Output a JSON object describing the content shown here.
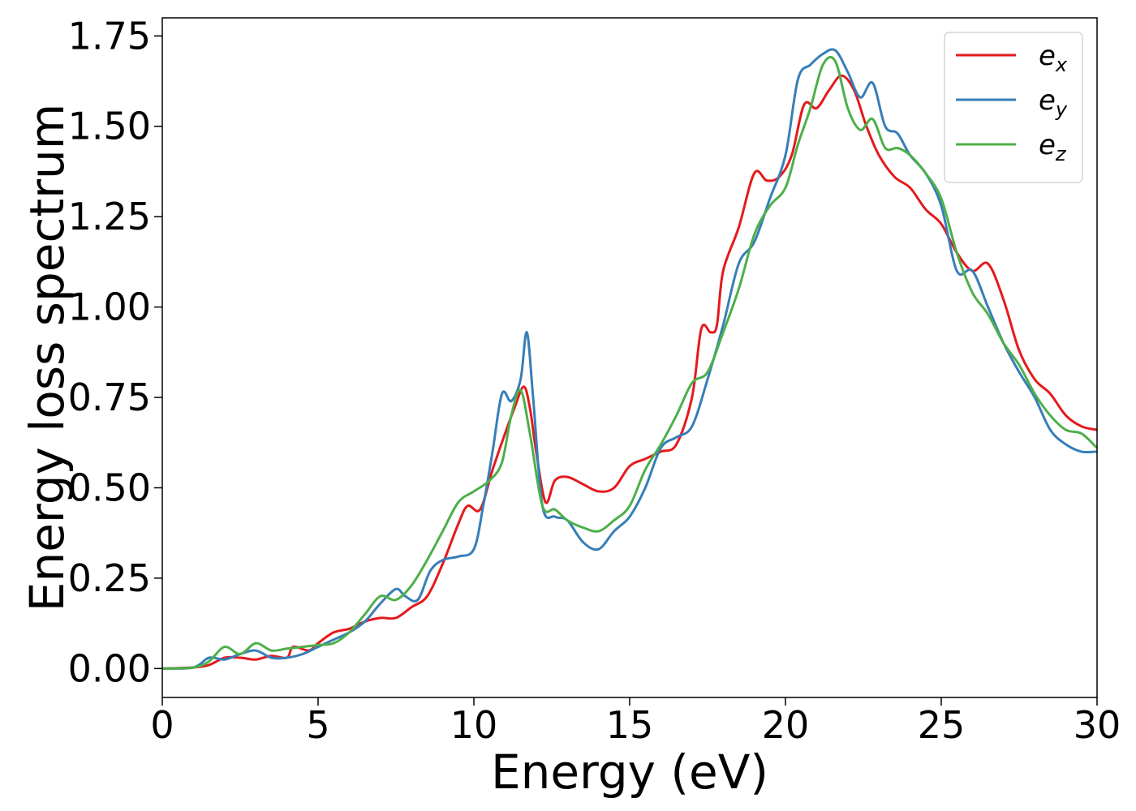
{
  "chart_data": {
    "type": "line",
    "xlabel": "Energy (eV)",
    "ylabel": "Energy loss spectrum",
    "xlim": [
      0,
      30
    ],
    "ylim": [
      -0.08,
      1.8
    ],
    "x_ticks": [
      "0",
      "5",
      "10",
      "15",
      "20",
      "25",
      "30"
    ],
    "y_ticks": [
      "0.00",
      "0.25",
      "0.50",
      "0.75",
      "1.00",
      "1.25",
      "1.50",
      "1.75"
    ],
    "grid": false,
    "legend_position": "top-right",
    "series": [
      {
        "name": "e_x",
        "legend_base": "e",
        "legend_sub": "x",
        "color": "#e41a1c",
        "points": [
          [
            0,
            0
          ],
          [
            1,
            0.003
          ],
          [
            1.5,
            0.01
          ],
          [
            2,
            0.03
          ],
          [
            2.5,
            0.03
          ],
          [
            3,
            0.025
          ],
          [
            3.5,
            0.035
          ],
          [
            4,
            0.03
          ],
          [
            4.2,
            0.06
          ],
          [
            4.7,
            0.05
          ],
          [
            5,
            0.07
          ],
          [
            5.5,
            0.1
          ],
          [
            6,
            0.11
          ],
          [
            6.5,
            0.13
          ],
          [
            7,
            0.14
          ],
          [
            7.5,
            0.14
          ],
          [
            8,
            0.17
          ],
          [
            8.5,
            0.2
          ],
          [
            9,
            0.29
          ],
          [
            9.5,
            0.4
          ],
          [
            9.8,
            0.45
          ],
          [
            10.2,
            0.44
          ],
          [
            10.6,
            0.55
          ],
          [
            11,
            0.65
          ],
          [
            11.3,
            0.72
          ],
          [
            11.6,
            0.78
          ],
          [
            11.8,
            0.72
          ],
          [
            12,
            0.6
          ],
          [
            12.3,
            0.46
          ],
          [
            12.6,
            0.52
          ],
          [
            13,
            0.53
          ],
          [
            13.5,
            0.51
          ],
          [
            14,
            0.49
          ],
          [
            14.5,
            0.5
          ],
          [
            15,
            0.56
          ],
          [
            15.5,
            0.58
          ],
          [
            16,
            0.6
          ],
          [
            16.5,
            0.62
          ],
          [
            17,
            0.75
          ],
          [
            17.3,
            0.94
          ],
          [
            17.6,
            0.93
          ],
          [
            17.8,
            0.95
          ],
          [
            18,
            1.1
          ],
          [
            18.5,
            1.22
          ],
          [
            19,
            1.37
          ],
          [
            19.4,
            1.35
          ],
          [
            19.8,
            1.36
          ],
          [
            20.2,
            1.42
          ],
          [
            20.6,
            1.56
          ],
          [
            21,
            1.55
          ],
          [
            21.4,
            1.6
          ],
          [
            21.8,
            1.64
          ],
          [
            22.2,
            1.6
          ],
          [
            22.6,
            1.5
          ],
          [
            23,
            1.42
          ],
          [
            23.5,
            1.36
          ],
          [
            24,
            1.33
          ],
          [
            24.5,
            1.27
          ],
          [
            25,
            1.23
          ],
          [
            25.5,
            1.15
          ],
          [
            26,
            1.1
          ],
          [
            26.5,
            1.12
          ],
          [
            27,
            1.02
          ],
          [
            27.5,
            0.88
          ],
          [
            28,
            0.8
          ],
          [
            28.5,
            0.76
          ],
          [
            29,
            0.7
          ],
          [
            29.5,
            0.67
          ],
          [
            30,
            0.66
          ]
        ]
      },
      {
        "name": "e_y",
        "legend_base": "e",
        "legend_sub": "y",
        "color": "#377eb8",
        "points": [
          [
            0,
            0
          ],
          [
            1,
            0.003
          ],
          [
            1.5,
            0.03
          ],
          [
            2,
            0.025
          ],
          [
            2.5,
            0.04
          ],
          [
            3,
            0.05
          ],
          [
            3.5,
            0.03
          ],
          [
            4,
            0.03
          ],
          [
            4.5,
            0.04
          ],
          [
            5,
            0.06
          ],
          [
            5.5,
            0.08
          ],
          [
            6,
            0.1
          ],
          [
            6.5,
            0.13
          ],
          [
            7,
            0.18
          ],
          [
            7.5,
            0.22
          ],
          [
            7.8,
            0.2
          ],
          [
            8.2,
            0.19
          ],
          [
            8.6,
            0.27
          ],
          [
            9,
            0.3
          ],
          [
            9.5,
            0.31
          ],
          [
            10,
            0.33
          ],
          [
            10.3,
            0.45
          ],
          [
            10.6,
            0.6
          ],
          [
            10.9,
            0.76
          ],
          [
            11.2,
            0.74
          ],
          [
            11.5,
            0.8
          ],
          [
            11.7,
            0.93
          ],
          [
            11.9,
            0.75
          ],
          [
            12.2,
            0.45
          ],
          [
            12.6,
            0.42
          ],
          [
            13,
            0.41
          ],
          [
            13.5,
            0.35
          ],
          [
            14,
            0.33
          ],
          [
            14.5,
            0.38
          ],
          [
            15,
            0.42
          ],
          [
            15.5,
            0.5
          ],
          [
            16,
            0.61
          ],
          [
            16.5,
            0.64
          ],
          [
            17,
            0.67
          ],
          [
            17.5,
            0.8
          ],
          [
            18,
            0.95
          ],
          [
            18.5,
            1.12
          ],
          [
            19,
            1.18
          ],
          [
            19.5,
            1.3
          ],
          [
            20,
            1.42
          ],
          [
            20.4,
            1.63
          ],
          [
            20.8,
            1.67
          ],
          [
            21.2,
            1.7
          ],
          [
            21.6,
            1.71
          ],
          [
            22,
            1.65
          ],
          [
            22.4,
            1.58
          ],
          [
            22.8,
            1.62
          ],
          [
            23.2,
            1.5
          ],
          [
            23.6,
            1.48
          ],
          [
            24,
            1.42
          ],
          [
            24.5,
            1.37
          ],
          [
            25,
            1.28
          ],
          [
            25.5,
            1.1
          ],
          [
            26,
            1.1
          ],
          [
            26.5,
            1.0
          ],
          [
            27,
            0.9
          ],
          [
            27.5,
            0.82
          ],
          [
            28,
            0.75
          ],
          [
            28.5,
            0.66
          ],
          [
            29,
            0.62
          ],
          [
            29.5,
            0.6
          ],
          [
            30,
            0.6
          ]
        ]
      },
      {
        "name": "e_z",
        "legend_base": "e",
        "legend_sub": "z",
        "color": "#4daf4a",
        "points": [
          [
            0,
            0
          ],
          [
            1,
            0.003
          ],
          [
            1.5,
            0.02
          ],
          [
            2,
            0.06
          ],
          [
            2.5,
            0.04
          ],
          [
            3,
            0.07
          ],
          [
            3.5,
            0.05
          ],
          [
            4,
            0.055
          ],
          [
            4.5,
            0.06
          ],
          [
            5,
            0.065
          ],
          [
            5.5,
            0.07
          ],
          [
            6,
            0.1
          ],
          [
            6.5,
            0.15
          ],
          [
            7,
            0.2
          ],
          [
            7.5,
            0.19
          ],
          [
            8,
            0.23
          ],
          [
            8.5,
            0.3
          ],
          [
            9,
            0.38
          ],
          [
            9.5,
            0.46
          ],
          [
            10,
            0.49
          ],
          [
            10.5,
            0.52
          ],
          [
            10.9,
            0.57
          ],
          [
            11.2,
            0.7
          ],
          [
            11.5,
            0.77
          ],
          [
            11.8,
            0.65
          ],
          [
            12.2,
            0.45
          ],
          [
            12.6,
            0.44
          ],
          [
            13,
            0.41
          ],
          [
            13.5,
            0.39
          ],
          [
            14,
            0.38
          ],
          [
            14.5,
            0.41
          ],
          [
            15,
            0.45
          ],
          [
            15.5,
            0.55
          ],
          [
            16,
            0.62
          ],
          [
            16.5,
            0.7
          ],
          [
            17,
            0.79
          ],
          [
            17.5,
            0.82
          ],
          [
            18,
            0.93
          ],
          [
            18.5,
            1.05
          ],
          [
            19,
            1.2
          ],
          [
            19.5,
            1.28
          ],
          [
            20,
            1.33
          ],
          [
            20.4,
            1.45
          ],
          [
            20.8,
            1.55
          ],
          [
            21.2,
            1.67
          ],
          [
            21.6,
            1.68
          ],
          [
            22,
            1.55
          ],
          [
            22.4,
            1.49
          ],
          [
            22.8,
            1.52
          ],
          [
            23.2,
            1.44
          ],
          [
            23.6,
            1.44
          ],
          [
            24,
            1.42
          ],
          [
            24.5,
            1.37
          ],
          [
            25,
            1.3
          ],
          [
            25.5,
            1.15
          ],
          [
            26,
            1.04
          ],
          [
            26.5,
            0.98
          ],
          [
            27,
            0.9
          ],
          [
            27.5,
            0.84
          ],
          [
            28,
            0.76
          ],
          [
            28.5,
            0.7
          ],
          [
            29,
            0.66
          ],
          [
            29.5,
            0.65
          ],
          [
            30,
            0.61
          ]
        ]
      }
    ]
  }
}
